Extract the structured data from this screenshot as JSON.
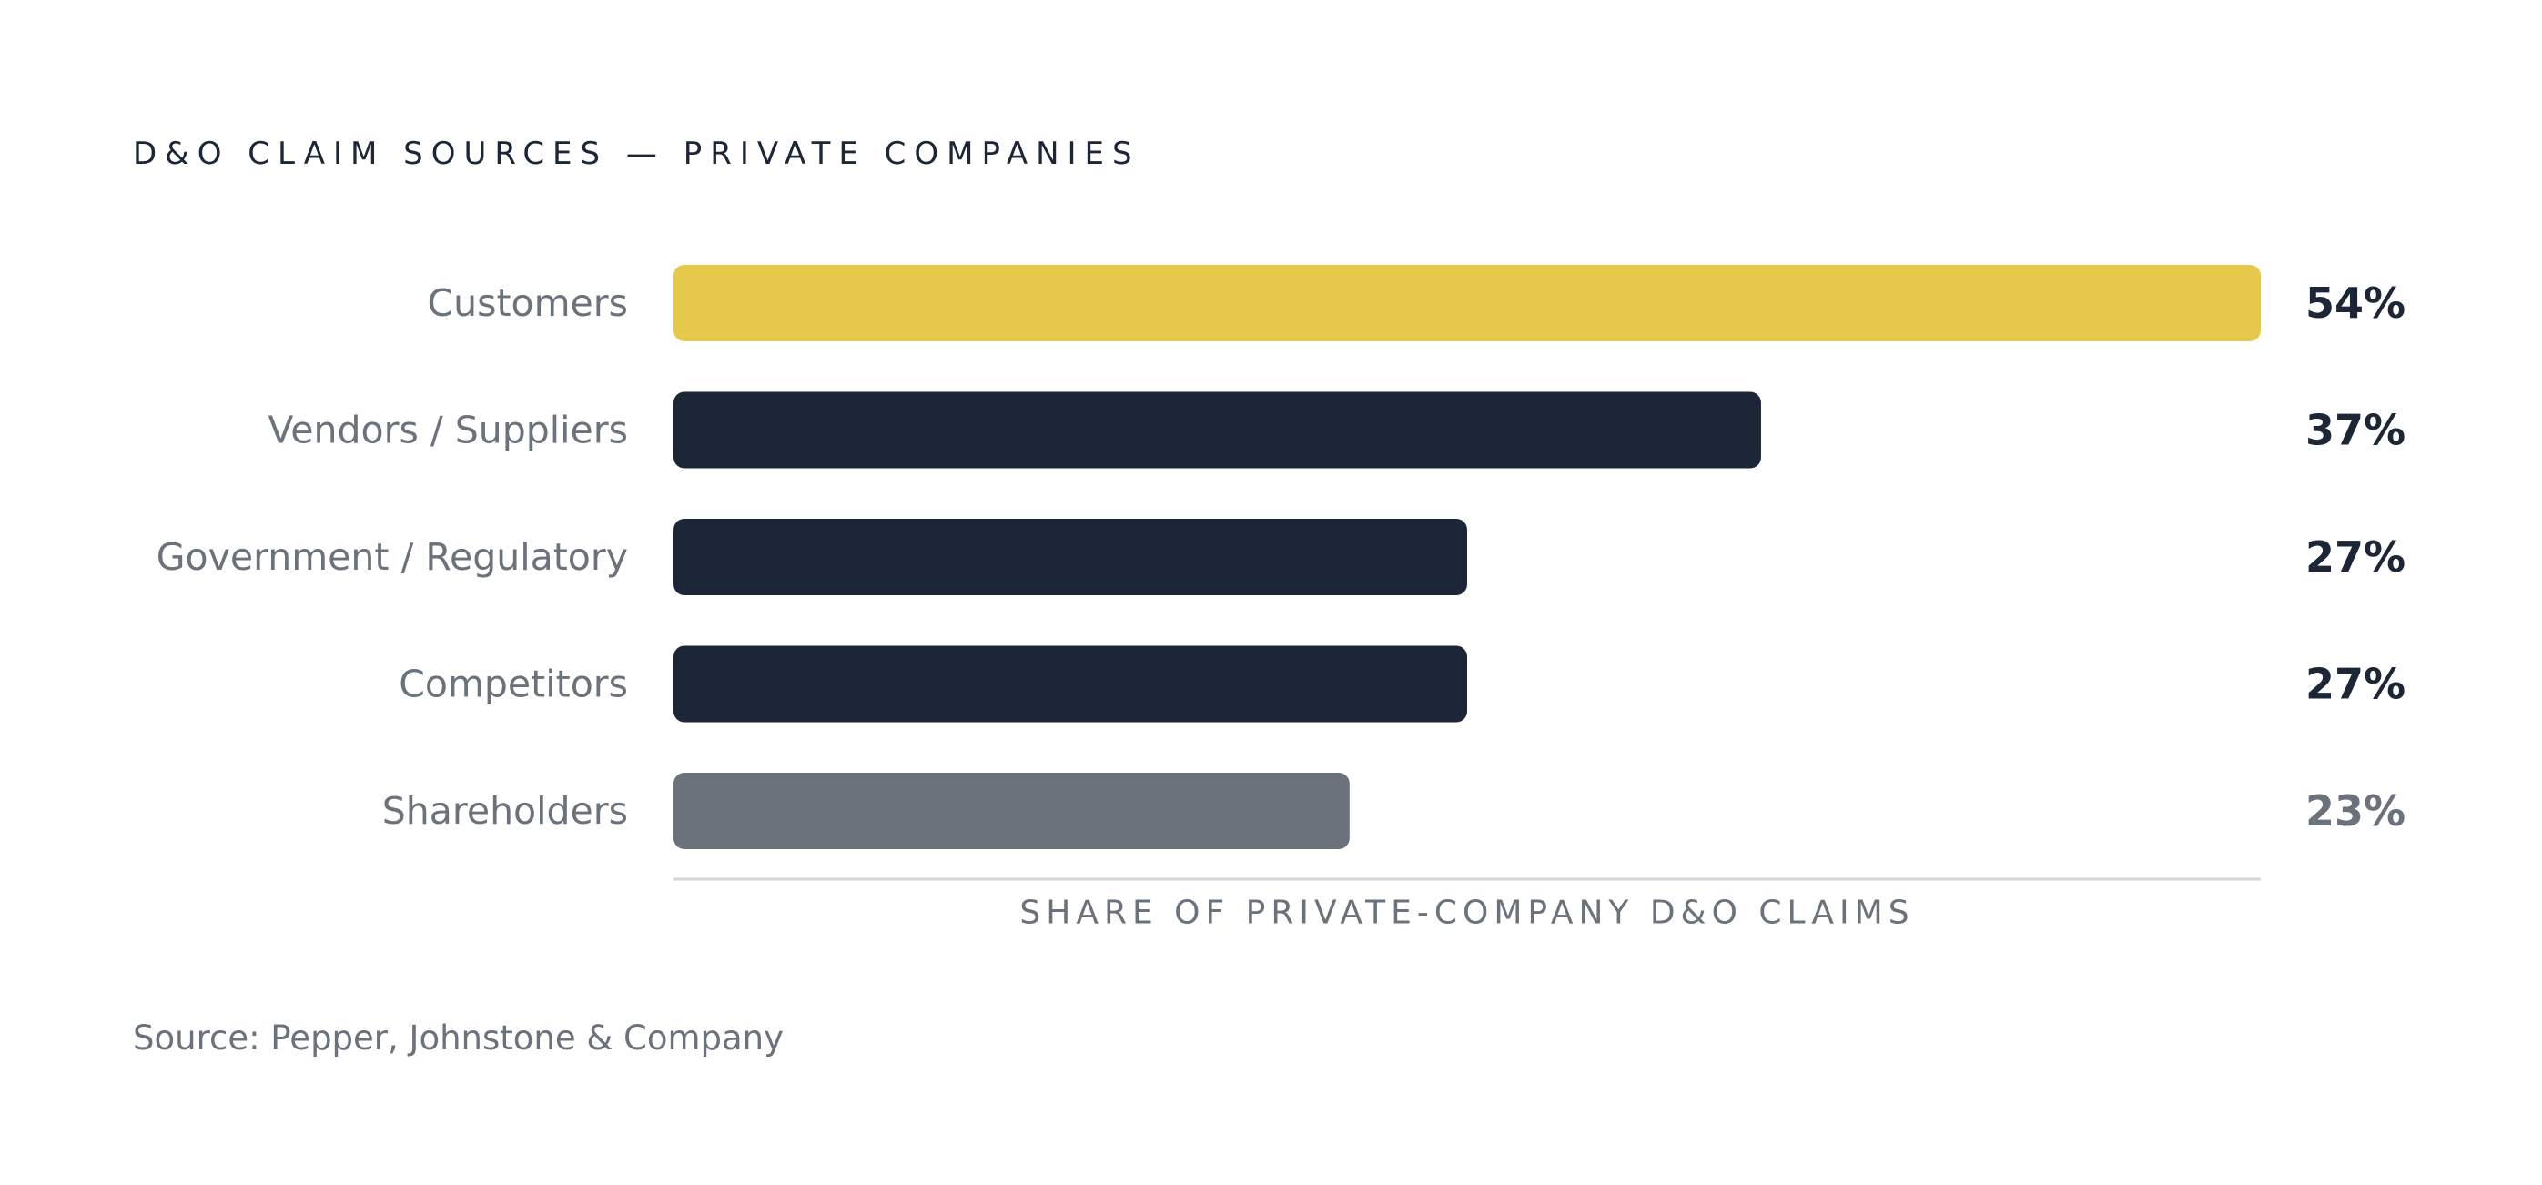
{
  "chart_data": {
    "type": "bar",
    "orientation": "horizontal",
    "title": "D&O CLAIM SOURCES — PRIVATE COMPANIES",
    "categories": [
      "Customers",
      "Vendors / Suppliers",
      "Government / Regulatory",
      "Competitors",
      "Shareholders"
    ],
    "values": [
      54,
      37,
      27,
      27,
      23
    ],
    "value_labels": [
      "54%",
      "37%",
      "27%",
      "27%",
      "23%"
    ],
    "unit": "%",
    "xlabel": "SHARE OF PRIVATE-COMPANY D&O CLAIMS",
    "ylabel": "",
    "xlim": [
      0,
      54
    ],
    "grid": false,
    "legend": "none",
    "bar_colors": [
      "#e6c84b",
      "#1c2636",
      "#1c2636",
      "#1c2636",
      "#6b727c"
    ],
    "value_label_colors": [
      "#1c2636",
      "#1c2636",
      "#1c2636",
      "#1c2636",
      "#6b727c"
    ],
    "axis_line_color": "#d4d6da"
  },
  "source": "Source: Pepper, Johnstone & Company"
}
